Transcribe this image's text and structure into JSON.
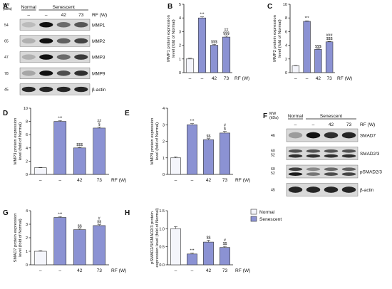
{
  "colors": {
    "normal": "#f4f5fb",
    "senescent": "#8b92d3",
    "band": "#111111",
    "blot_bg": "#d9d9d9"
  },
  "legend": {
    "normal": "Normal",
    "senescent": "Senescent"
  },
  "blots": [
    {
      "panel": "A",
      "mw_header": "MW\n(kDa)",
      "group_labels": [
        "Normal",
        "Senescent"
      ],
      "lanes": [
        "–",
        "–",
        "42",
        "73"
      ],
      "rf_label": "RF (W)",
      "rows": [
        {
          "mw": "54",
          "protein": "MMP1",
          "bands": [
            0.15,
            1.0,
            0.55,
            0.65
          ]
        },
        {
          "mw": "65",
          "protein": "MMP2",
          "bands": [
            0.2,
            1.0,
            0.6,
            0.75
          ]
        },
        {
          "mw": "47",
          "protein": "MMP3",
          "bands": [
            0.2,
            1.0,
            0.55,
            0.8
          ]
        },
        {
          "mw": "78",
          "protein": "MMP9",
          "bands": [
            0.25,
            1.0,
            0.7,
            0.85
          ]
        },
        {
          "mw": "45",
          "protein": "β-actin",
          "bands": [
            0.9,
            0.9,
            0.9,
            0.9
          ]
        }
      ]
    },
    {
      "panel": "F",
      "mw_header": "MW\n(kDa)",
      "group_labels": [
        "Normal",
        "Senescent"
      ],
      "lanes": [
        "–",
        "–",
        "42",
        "73"
      ],
      "rf_label": "RF (W)",
      "rows": [
        {
          "mw": "46",
          "protein": "SMAD7",
          "bands": [
            0.3,
            1.0,
            0.85,
            0.9
          ]
        },
        {
          "mw": "60\n52",
          "protein": "SMAD2/3",
          "bands": [
            0.85,
            0.85,
            0.85,
            0.85
          ],
          "double": true
        },
        {
          "mw": "60\n52",
          "protein": "pSMAD2/3",
          "bands": [
            0.95,
            0.5,
            0.7,
            0.75
          ],
          "double": true
        },
        {
          "mw": "45",
          "protein": "β-actin",
          "bands": [
            0.9,
            0.9,
            0.9,
            0.9
          ]
        }
      ]
    }
  ],
  "chart_data": [
    {
      "panel": "B",
      "type": "bar",
      "categories": [
        "–",
        "–",
        "42",
        "73"
      ],
      "group": [
        "Normal",
        "Senescent",
        "Senescent",
        "Senescent"
      ],
      "values": [
        1.0,
        4.0,
        2.0,
        2.6
      ],
      "errors": [
        0.05,
        0.08,
        0.06,
        0.07
      ],
      "annotations": [
        "",
        "***",
        "$$$",
        "##\n$$$"
      ],
      "ylabel": "MMP1 protein expression\nlevel (fold of Normal)",
      "xlabel": "RF (W)",
      "ylim": [
        0,
        5
      ],
      "yticks": [
        0,
        1,
        2,
        3,
        4,
        5
      ]
    },
    {
      "panel": "C",
      "type": "bar",
      "categories": [
        "–",
        "–",
        "42",
        "73"
      ],
      "group": [
        "Normal",
        "Senescent",
        "Senescent",
        "Senescent"
      ],
      "values": [
        1.0,
        7.5,
        3.4,
        4.5
      ],
      "errors": [
        0.05,
        0.08,
        0.06,
        0.06
      ],
      "annotations": [
        "",
        "***",
        "$$$",
        "###\n$$$"
      ],
      "ylabel": "MMP2 protein expression\nlevel (fold of Normal)",
      "xlabel": "RF (W)",
      "ylim": [
        0,
        10
      ],
      "yticks": [
        0,
        2,
        4,
        6,
        8,
        10
      ]
    },
    {
      "panel": "D",
      "type": "bar",
      "categories": [
        "–",
        "–",
        "42",
        "73"
      ],
      "group": [
        "Normal",
        "Senescent",
        "Senescent",
        "Senescent"
      ],
      "values": [
        1.0,
        8.0,
        4.0,
        7.0
      ],
      "errors": [
        0.05,
        0.12,
        0.08,
        0.15
      ],
      "annotations": [
        "",
        "***",
        "$$$",
        "##\n$"
      ],
      "ylabel": "MMP3 protein expression\nlevel (fold of Normal)",
      "xlabel": "RF (W)",
      "ylim": [
        0,
        10
      ],
      "yticks": [
        0,
        2,
        4,
        6,
        8,
        10
      ]
    },
    {
      "panel": "E",
      "type": "bar",
      "categories": [
        "–",
        "–",
        "42",
        "73"
      ],
      "group": [
        "Normal",
        "Senescent",
        "Senescent",
        "Senescent"
      ],
      "values": [
        1.0,
        3.0,
        2.1,
        2.5
      ],
      "errors": [
        0.06,
        0.07,
        0.06,
        0.1
      ],
      "annotations": [
        "",
        "***",
        "$$",
        "#\n$"
      ],
      "ylabel": "MMP9 protein expression\nlevel (fold of Normal)",
      "xlabel": "RF (W)",
      "ylim": [
        0,
        4
      ],
      "yticks": [
        0,
        1,
        2,
        3,
        4
      ]
    },
    {
      "panel": "G",
      "type": "bar",
      "categories": [
        "–",
        "–",
        "42",
        "73"
      ],
      "group": [
        "Normal",
        "Senescent",
        "Senescent",
        "Senescent"
      ],
      "values": [
        1.0,
        3.5,
        2.6,
        2.9
      ],
      "errors": [
        0.05,
        0.06,
        0.05,
        0.07
      ],
      "annotations": [
        "",
        "***",
        "$$",
        "#\n$$"
      ],
      "ylabel": "SMAD7 protein expression\nlevel (fold of Normal)",
      "xlabel": "RF (W)",
      "ylim": [
        0,
        4
      ],
      "yticks": [
        0,
        1,
        2,
        3,
        4
      ]
    },
    {
      "panel": "H",
      "type": "bar",
      "categories": [
        "–",
        "–",
        "42",
        "73"
      ],
      "group": [
        "Normal",
        "Senescent",
        "Senescent",
        "Senescent"
      ],
      "values": [
        1.0,
        0.3,
        0.63,
        0.48
      ],
      "errors": [
        0.06,
        0.03,
        0.05,
        0.03
      ],
      "annotations": [
        "",
        "***",
        "$$",
        "#\n$$"
      ],
      "ylabel": "pSMAD2/3/SMAD2/3 protein\nexpression level (fold of Normal)",
      "xlabel": "RF (W)",
      "ylim": [
        0,
        1.5
      ],
      "yticks": [
        0.0,
        0.5,
        1.0,
        1.5
      ]
    }
  ]
}
